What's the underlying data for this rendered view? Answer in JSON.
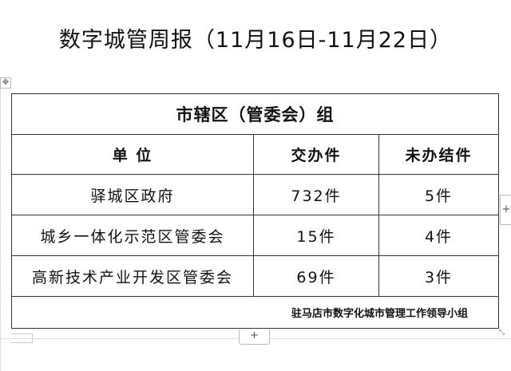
{
  "document_title": "数字城管周报（11月16日-11月22日）",
  "table": {
    "group_title": "市辖区（管委会）组",
    "headers": [
      "单 位",
      "交办件",
      "未办结件"
    ],
    "rows": [
      {
        "unit": "驿城区政府",
        "assigned": "732件",
        "unfinished": "5件"
      },
      {
        "unit": "城乡一体化示范区管委会",
        "assigned": "15件",
        "unfinished": "4件"
      },
      {
        "unit": "高新技术产业开发区管委会",
        "assigned": "69件",
        "unfinished": "3件"
      }
    ],
    "footer": "驻马店市数字化城市管理工作领导小组"
  },
  "controls": {
    "add_row": "+",
    "add_column": "+",
    "move": "✥",
    "resize": "⤡"
  }
}
